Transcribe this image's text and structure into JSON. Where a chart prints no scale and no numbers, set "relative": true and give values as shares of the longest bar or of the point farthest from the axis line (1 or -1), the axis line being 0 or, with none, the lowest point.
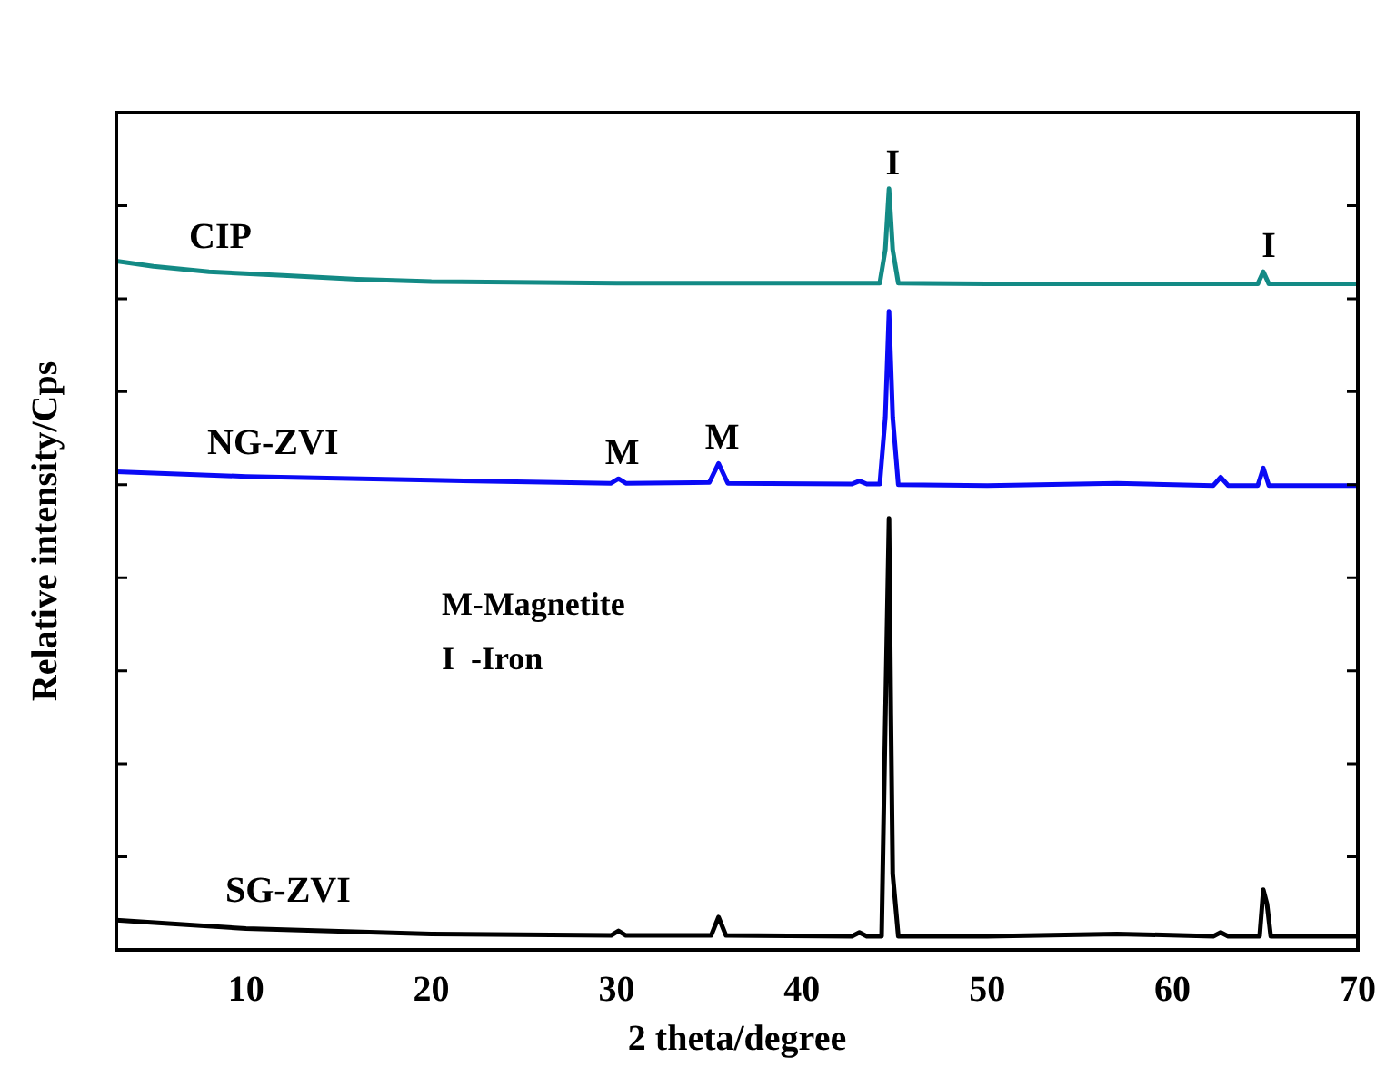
{
  "chart_data": {
    "type": "line",
    "relative": true,
    "xlabel": "2 theta/degree",
    "ylabel": "Relative intensity/Cps",
    "xlim": [
      3,
      70
    ],
    "xticks": [
      10,
      20,
      30,
      40,
      50,
      60,
      70
    ],
    "grid": false,
    "legend": false,
    "marker": "none",
    "line_style": "solid",
    "series": [
      {
        "name": "CIP",
        "color": "#138a85",
        "x": [
          3,
          5,
          8,
          12,
          16,
          20,
          30,
          40,
          44.2,
          44.5,
          44.7,
          44.9,
          45.2,
          50,
          55,
          60,
          64.6,
          64.9,
          65.2,
          70
        ],
        "values": [
          0.905,
          0.898,
          0.891,
          0.886,
          0.881,
          0.878,
          0.876,
          0.876,
          0.876,
          0.92,
          1,
          0.92,
          0.876,
          0.875,
          0.875,
          0.875,
          0.875,
          0.891,
          0.875,
          0.875
        ]
      },
      {
        "name": "NG-ZVI",
        "color": "#0a0af5",
        "x": [
          3,
          10,
          20,
          29.7,
          30.1,
          30.5,
          35,
          35.5,
          36,
          42.7,
          43.1,
          43.5,
          44.2,
          44.5,
          44.7,
          44.9,
          45.2,
          50,
          57,
          62.2,
          62.6,
          63,
          64.6,
          64.9,
          65.2,
          70
        ],
        "values": [
          0.628,
          0.622,
          0.617,
          0.613,
          0.619,
          0.613,
          0.614,
          0.639,
          0.613,
          0.612,
          0.616,
          0.612,
          0.612,
          0.7,
          0.839,
          0.7,
          0.611,
          0.61,
          0.613,
          0.61,
          0.621,
          0.61,
          0.61,
          0.633,
          0.61,
          0.61
        ]
      },
      {
        "name": "SG-ZVI",
        "color": "#000000",
        "x": [
          3,
          10,
          20,
          29.7,
          30.1,
          30.5,
          35.1,
          35.5,
          35.9,
          42.7,
          43.1,
          43.5,
          44.3,
          44.5,
          44.7,
          44.8,
          44.9,
          45.2,
          50,
          57,
          62.2,
          62.6,
          63,
          64.7,
          64.9,
          65.1,
          65.3,
          70
        ],
        "values": [
          0.039,
          0.028,
          0.021,
          0.019,
          0.025,
          0.019,
          0.019,
          0.043,
          0.019,
          0.018,
          0.023,
          0.018,
          0.018,
          0.3,
          0.567,
          0.31,
          0.1,
          0.018,
          0.018,
          0.021,
          0.018,
          0.023,
          0.018,
          0.018,
          0.079,
          0.06,
          0.018,
          0.018
        ]
      }
    ],
    "annotations": [
      {
        "text": "I",
        "x": 44.7,
        "y": 1
      },
      {
        "text": "I",
        "x": 65,
        "y": 0.891
      },
      {
        "text": "M",
        "x": 30.1,
        "y": 0.619
      },
      {
        "text": "M",
        "x": 35.5,
        "y": 0.639
      },
      "M-Magnetite",
      "I  -Iron"
    ]
  }
}
